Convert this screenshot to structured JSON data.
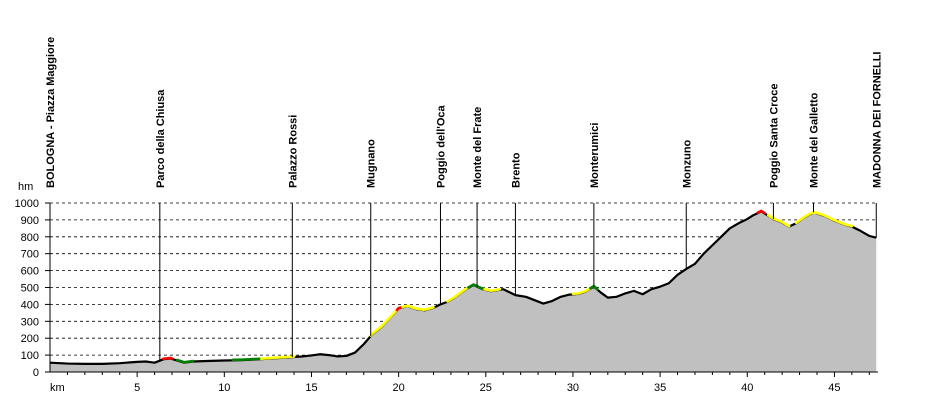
{
  "chart_data": {
    "type": "area",
    "ylabel": "hm",
    "xlabel": "km",
    "xlim": [
      0,
      47.5
    ],
    "ylim": [
      0,
      1000
    ],
    "grid": true,
    "x_ticks": [
      "5",
      "10",
      "15",
      "20",
      "25",
      "30",
      "35",
      "40",
      "45"
    ],
    "y_ticks": [
      "0",
      "100",
      "200",
      "300",
      "400",
      "500",
      "600",
      "700",
      "800",
      "900",
      "1000"
    ],
    "colors": {
      "fill": "#c0c0c0",
      "line": "#000000",
      "highlight": "#ffff00",
      "green": "#008000",
      "red": "#ff0000"
    },
    "locations": [
      {
        "name": "BOLOGNA - Piazza Maggiore",
        "x": 0.0
      },
      {
        "name": "Parco della Chiusa",
        "x": 6.3
      },
      {
        "name": "Palazzo Rossi",
        "x": 13.9
      },
      {
        "name": "Mugnano",
        "x": 18.4
      },
      {
        "name": "Poggio dell'Oca",
        "x": 22.4
      },
      {
        "name": "Monte del Frate",
        "x": 24.5
      },
      {
        "name": "Brento",
        "x": 26.7
      },
      {
        "name": "Monterumici",
        "x": 31.2
      },
      {
        "name": "Monzuno",
        "x": 36.5
      },
      {
        "name": "Poggio Santa Croce",
        "x": 41.5
      },
      {
        "name": "Monte del Galletto",
        "x": 43.8
      },
      {
        "name": "MADONNA DEI FORNELLI",
        "x": 47.4
      }
    ],
    "profile": [
      [
        0,
        55
      ],
      [
        1,
        50
      ],
      [
        2,
        48
      ],
      [
        3,
        48
      ],
      [
        4,
        52
      ],
      [
        5,
        60
      ],
      [
        5.5,
        62
      ],
      [
        6.0,
        55
      ],
      [
        6.5,
        75
      ],
      [
        6.9,
        80
      ],
      [
        7.3,
        68
      ],
      [
        7.7,
        55
      ],
      [
        8.2,
        62
      ],
      [
        9,
        65
      ],
      [
        10,
        68
      ],
      [
        11,
        70
      ],
      [
        12,
        75
      ],
      [
        13,
        82
      ],
      [
        13.9,
        88
      ],
      [
        14.5,
        92
      ],
      [
        15,
        98
      ],
      [
        15.5,
        105
      ],
      [
        16,
        100
      ],
      [
        16.5,
        92
      ],
      [
        17,
        95
      ],
      [
        17.5,
        115
      ],
      [
        18.0,
        165
      ],
      [
        18.5,
        225
      ],
      [
        19,
        265
      ],
      [
        19.5,
        320
      ],
      [
        20,
        375
      ],
      [
        20.5,
        390
      ],
      [
        21,
        372
      ],
      [
        21.5,
        365
      ],
      [
        22,
        380
      ],
      [
        22.4,
        400
      ],
      [
        22.8,
        415
      ],
      [
        23.2,
        440
      ],
      [
        23.8,
        485
      ],
      [
        24.3,
        515
      ],
      [
        24.8,
        490
      ],
      [
        25.3,
        478
      ],
      [
        26,
        490
      ],
      [
        26.7,
        455
      ],
      [
        27.3,
        445
      ],
      [
        27.8,
        425
      ],
      [
        28.3,
        405
      ],
      [
        28.8,
        420
      ],
      [
        29.3,
        445
      ],
      [
        29.8,
        458
      ],
      [
        30.3,
        462
      ],
      [
        30.7,
        475
      ],
      [
        31.2,
        505
      ],
      [
        31.6,
        470
      ],
      [
        32,
        440
      ],
      [
        32.5,
        445
      ],
      [
        33,
        465
      ],
      [
        33.5,
        480
      ],
      [
        34,
        460
      ],
      [
        34.5,
        490
      ],
      [
        35,
        505
      ],
      [
        35.5,
        525
      ],
      [
        36,
        575
      ],
      [
        36.5,
        610
      ],
      [
        37,
        640
      ],
      [
        37.5,
        700
      ],
      [
        38,
        750
      ],
      [
        38.5,
        800
      ],
      [
        39,
        850
      ],
      [
        39.5,
        880
      ],
      [
        40,
        905
      ],
      [
        40.3,
        925
      ],
      [
        40.8,
        950
      ],
      [
        41.2,
        925
      ],
      [
        41.5,
        905
      ],
      [
        42,
        885
      ],
      [
        42.4,
        860
      ],
      [
        42.8,
        880
      ],
      [
        43.2,
        910
      ],
      [
        43.8,
        945
      ],
      [
        44.4,
        925
      ],
      [
        45,
        895
      ],
      [
        45.5,
        875
      ],
      [
        46,
        860
      ],
      [
        46.5,
        835
      ],
      [
        47,
        805
      ],
      [
        47.4,
        795
      ]
    ],
    "highlight_segments": [
      {
        "color": "yellow",
        "from": 12.0,
        "to": 14.0
      },
      {
        "color": "yellow",
        "from": 18.4,
        "to": 20.0
      },
      {
        "color": "yellow",
        "from": 20.0,
        "to": 22.0
      },
      {
        "color": "yellow",
        "from": 22.8,
        "to": 24.0
      },
      {
        "color": "yellow",
        "from": 24.8,
        "to": 25.8
      },
      {
        "color": "yellow",
        "from": 30.0,
        "to": 31.0
      },
      {
        "color": "yellow",
        "from": 41.2,
        "to": 42.4
      },
      {
        "color": "yellow",
        "from": 42.8,
        "to": 46.0
      },
      {
        "color": "green",
        "from": 7.3,
        "to": 8.2
      },
      {
        "color": "green",
        "from": 10.5,
        "to": 12.0
      },
      {
        "color": "green",
        "from": 24.0,
        "to": 24.8
      },
      {
        "color": "green",
        "from": 31.0,
        "to": 31.4
      },
      {
        "color": "red",
        "from": 6.5,
        "to": 7.0
      },
      {
        "color": "red",
        "from": 40.6,
        "to": 41.0
      },
      {
        "color": "red",
        "from": 19.9,
        "to": 20.1
      }
    ]
  }
}
